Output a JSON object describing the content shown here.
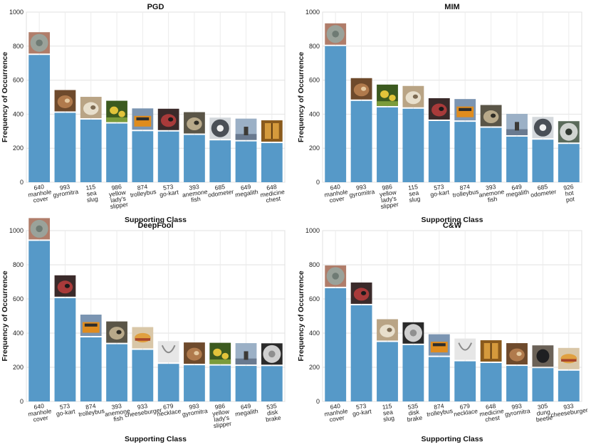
{
  "chart_data": [
    {
      "type": "bar",
      "title": "PGD",
      "xlabel": "Supporting Class",
      "ylabel": "Frequency of Occurrence",
      "ylim": [
        0,
        1000
      ],
      "yticks": [
        "0",
        "200",
        "400",
        "600",
        "800",
        "1000"
      ],
      "categories": [
        [
          "640",
          "manhole",
          "cover"
        ],
        [
          "993",
          "gyromitra"
        ],
        [
          "115",
          "sea",
          "slug"
        ],
        [
          "986",
          "yellow",
          "lady's",
          "slipper"
        ],
        [
          "874",
          "trolleybus"
        ],
        [
          "573",
          "go-kart"
        ],
        [
          "393",
          "anemone",
          "fish"
        ],
        [
          "685",
          "odometer"
        ],
        [
          "649",
          "megalith"
        ],
        [
          "648",
          "medicine",
          "chest"
        ]
      ],
      "thumbnails": [
        "manhole",
        "mushroom",
        "slug",
        "flower",
        "bus",
        "kart",
        "fish",
        "odometer",
        "megalith",
        "cabinet"
      ],
      "values": [
        748,
        408,
        368,
        345,
        300,
        298,
        278,
        246,
        240,
        230
      ],
      "grid": true
    },
    {
      "type": "bar",
      "title": "MIM",
      "xlabel": "Supporting Class",
      "ylabel": "Frequency of Occurrence",
      "ylim": [
        0,
        1000
      ],
      "yticks": [
        "0",
        "200",
        "400",
        "600",
        "800",
        "1000"
      ],
      "categories": [
        [
          "640",
          "manhole",
          "cover"
        ],
        [
          "993",
          "gyromitra"
        ],
        [
          "986",
          "yellow",
          "lady's",
          "slipper"
        ],
        [
          "115",
          "sea",
          "slug"
        ],
        [
          "573",
          "go-kart"
        ],
        [
          "874",
          "trolleybus"
        ],
        [
          "393",
          "anemone",
          "fish"
        ],
        [
          "649",
          "megalith"
        ],
        [
          "685",
          "odometer"
        ],
        [
          "926",
          "hot",
          "pot"
        ]
      ],
      "thumbnails": [
        "manhole",
        "mushroom",
        "flower",
        "slug",
        "kart",
        "bus",
        "fish",
        "megalith",
        "odometer",
        "pot"
      ],
      "values": [
        800,
        478,
        440,
        432,
        360,
        355,
        320,
        268,
        250,
        225
      ],
      "grid": true
    },
    {
      "type": "bar",
      "title": "DeepFool",
      "xlabel": "Supporting Class",
      "ylabel": "Frequency of Occurrence",
      "ylim": [
        0,
        1000
      ],
      "yticks": [
        "0",
        "200",
        "400",
        "600",
        "800",
        "1000"
      ],
      "categories": [
        [
          "640",
          "manhole",
          "cover"
        ],
        [
          "573",
          "go-kart"
        ],
        [
          "874",
          "trolleybus"
        ],
        [
          "393",
          "anemone",
          "fish"
        ],
        [
          "933",
          "cheeseburger"
        ],
        [
          "679",
          "necklace"
        ],
        [
          "993",
          "gyromitra"
        ],
        [
          "986",
          "yellow",
          "lady's",
          "slipper"
        ],
        [
          "649",
          "megalith"
        ],
        [
          "535",
          "disk",
          "brake"
        ]
      ],
      "thumbnails": [
        "manhole",
        "kart",
        "bus",
        "fish",
        "burger",
        "necklace",
        "mushroom",
        "flower",
        "megalith",
        "brake"
      ],
      "values": [
        940,
        605,
        375,
        335,
        302,
        220,
        212,
        210,
        208,
        207
      ],
      "grid": true
    },
    {
      "type": "bar",
      "title": "C&W",
      "xlabel": "Supporting Class",
      "ylabel": "Frequency of Occurrence",
      "ylim": [
        0,
        1000
      ],
      "yticks": [
        "0",
        "200",
        "400",
        "600",
        "800",
        "1000"
      ],
      "categories": [
        [
          "640",
          "manhole",
          "cover"
        ],
        [
          "573",
          "go-kart"
        ],
        [
          "115",
          "sea",
          "slug"
        ],
        [
          "535",
          "disk",
          "brake"
        ],
        [
          "874",
          "trolleybus"
        ],
        [
          "679",
          "necklace"
        ],
        [
          "648",
          "medicine",
          "chest"
        ],
        [
          "993",
          "gyromitra"
        ],
        [
          "305",
          "dung",
          "beetle"
        ],
        [
          "933",
          "cheeseburger"
        ]
      ],
      "thumbnails": [
        "manhole",
        "kart",
        "slug",
        "brake",
        "bus",
        "necklace",
        "cabinet",
        "mushroom",
        "beetle",
        "burger"
      ],
      "values": [
        663,
        563,
        348,
        330,
        260,
        235,
        225,
        208,
        195,
        180
      ],
      "grid": true
    }
  ]
}
